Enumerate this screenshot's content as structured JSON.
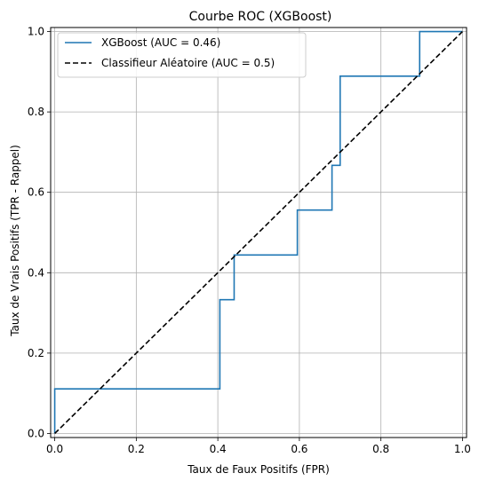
{
  "chart_data": {
    "type": "line",
    "title": "Courbe ROC (XGBoost)",
    "xlabel": "Taux de Faux Positifs (FPR)",
    "ylabel": "Taux de Vrais Positifs (TPR - Rappel)",
    "xlim": [
      -0.01,
      1.01
    ],
    "ylim": [
      -0.01,
      1.01
    ],
    "xticks": [
      0.0,
      0.2,
      0.4,
      0.6,
      0.8,
      1.0
    ],
    "yticks": [
      0.0,
      0.2,
      0.4,
      0.6,
      0.8,
      1.0
    ],
    "xtick_labels": [
      "0.0",
      "0.2",
      "0.4",
      "0.6",
      "0.8",
      "1.0"
    ],
    "ytick_labels": [
      "0.0",
      "0.2",
      "0.4",
      "0.6",
      "0.8",
      "1.0"
    ],
    "grid": true,
    "legend_position": "upper-left",
    "series": [
      {
        "name": "XGBoost (AUC = 0.46)",
        "color": "#1f77b4",
        "style": "solid",
        "x": [
          0.0,
          0.0,
          0.405,
          0.405,
          0.44,
          0.44,
          0.595,
          0.595,
          0.68,
          0.68,
          0.7,
          0.7,
          0.895,
          0.895,
          1.0
        ],
        "y": [
          0.0,
          0.111,
          0.111,
          0.333,
          0.333,
          0.444,
          0.444,
          0.556,
          0.556,
          0.667,
          0.667,
          0.889,
          0.889,
          1.0,
          1.0
        ]
      },
      {
        "name": "Classifieur Aléatoire (AUC = 0.5)",
        "color": "#000000",
        "style": "dashed",
        "x": [
          0.0,
          1.0
        ],
        "y": [
          0.0,
          1.0
        ]
      }
    ]
  }
}
